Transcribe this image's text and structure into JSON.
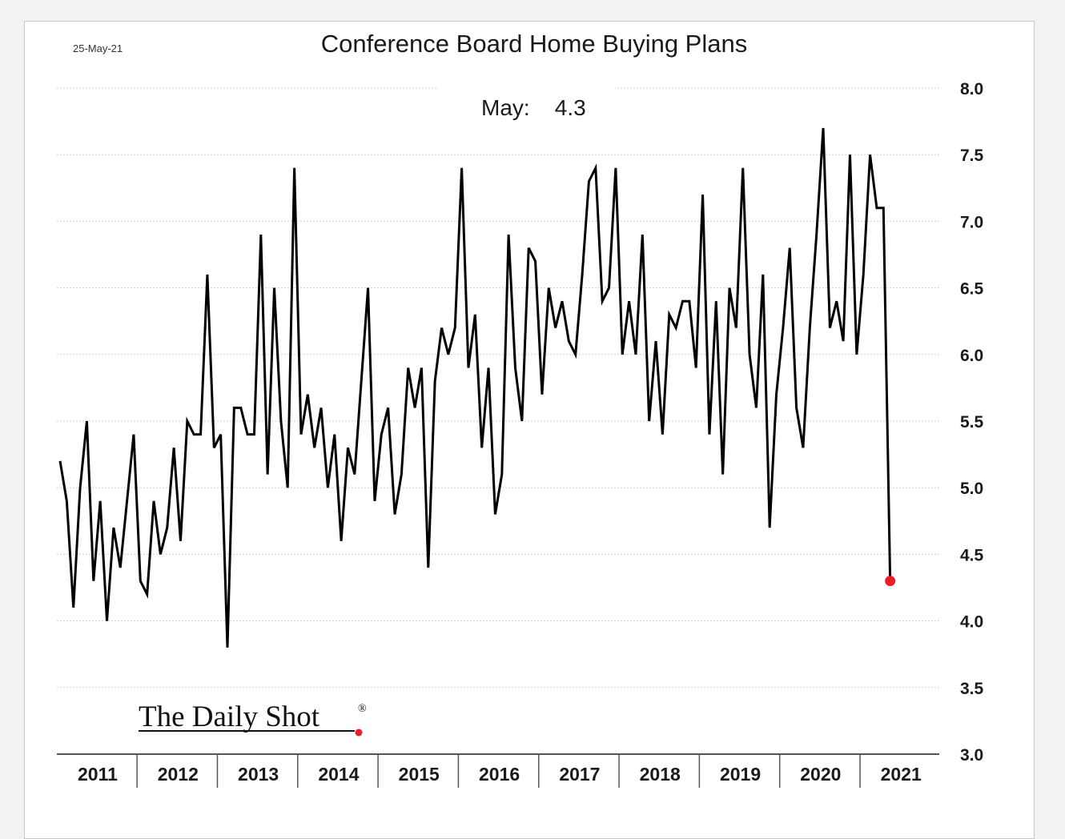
{
  "chart_data": {
    "type": "line",
    "title": "Conference Board Home Buying Plans",
    "date_label": "25-May-21",
    "annotation": "May:    4.3",
    "watermark": "The Daily Shot",
    "watermark_mark": "®",
    "x_tick_labels": [
      "2011",
      "2012",
      "2013",
      "2014",
      "2015",
      "2016",
      "2017",
      "2018",
      "2019",
      "2020",
      "2021"
    ],
    "y_tick_labels": [
      "8.0",
      "7.5",
      "7.0",
      "6.5",
      "6.0",
      "5.5",
      "5.0",
      "4.5",
      "4.0",
      "3.5",
      "3.0"
    ],
    "ylim": [
      3.0,
      8.0
    ],
    "y_axis_side": "right",
    "grid": "horizontal-dotted",
    "start": "2011-01",
    "frequency": "monthly",
    "series": [
      {
        "values": [
          5.2,
          4.9,
          4.1,
          5.0,
          5.5,
          4.3,
          4.9,
          4.0,
          4.7,
          4.4,
          4.9,
          5.4,
          4.3,
          4.2,
          4.9,
          4.5,
          4.7,
          5.3,
          4.6,
          5.5,
          5.4,
          5.4,
          6.6,
          5.3,
          5.4,
          3.8,
          5.6,
          5.6,
          5.4,
          5.4,
          6.9,
          5.1,
          6.5,
          5.5,
          5.0,
          7.4,
          5.4,
          5.7,
          5.3,
          5.6,
          5.0,
          5.4,
          4.6,
          5.3,
          5.1,
          5.8,
          6.5,
          4.9,
          5.4,
          5.6,
          4.8,
          5.1,
          5.9,
          5.6,
          5.9,
          4.4,
          5.8,
          6.2,
          6.0,
          6.2,
          7.4,
          5.9,
          6.3,
          5.3,
          5.9,
          4.8,
          5.1,
          6.9,
          5.9,
          5.5,
          6.8,
          6.7,
          5.7,
          6.5,
          6.2,
          6.4,
          6.1,
          6.0,
          6.6,
          7.3,
          7.4,
          6.4,
          6.5,
          7.4,
          6.0,
          6.4,
          6.0,
          6.9,
          5.5,
          6.1,
          5.4,
          6.3,
          6.2,
          6.4,
          6.4,
          5.9,
          7.2,
          5.4,
          6.4,
          5.1,
          6.5,
          6.2,
          7.4,
          6.0,
          5.6,
          6.6,
          4.7,
          5.7,
          6.2,
          6.8,
          5.6,
          5.3,
          6.2,
          6.9,
          7.7,
          6.2,
          6.4,
          6.1,
          7.5,
          6.0,
          6.6,
          7.5,
          7.1,
          7.1,
          4.3
        ],
        "color": "#000000"
      }
    ],
    "last_point": {
      "date": "2021-05",
      "value": 4.3,
      "color": "#ee1c25"
    }
  }
}
